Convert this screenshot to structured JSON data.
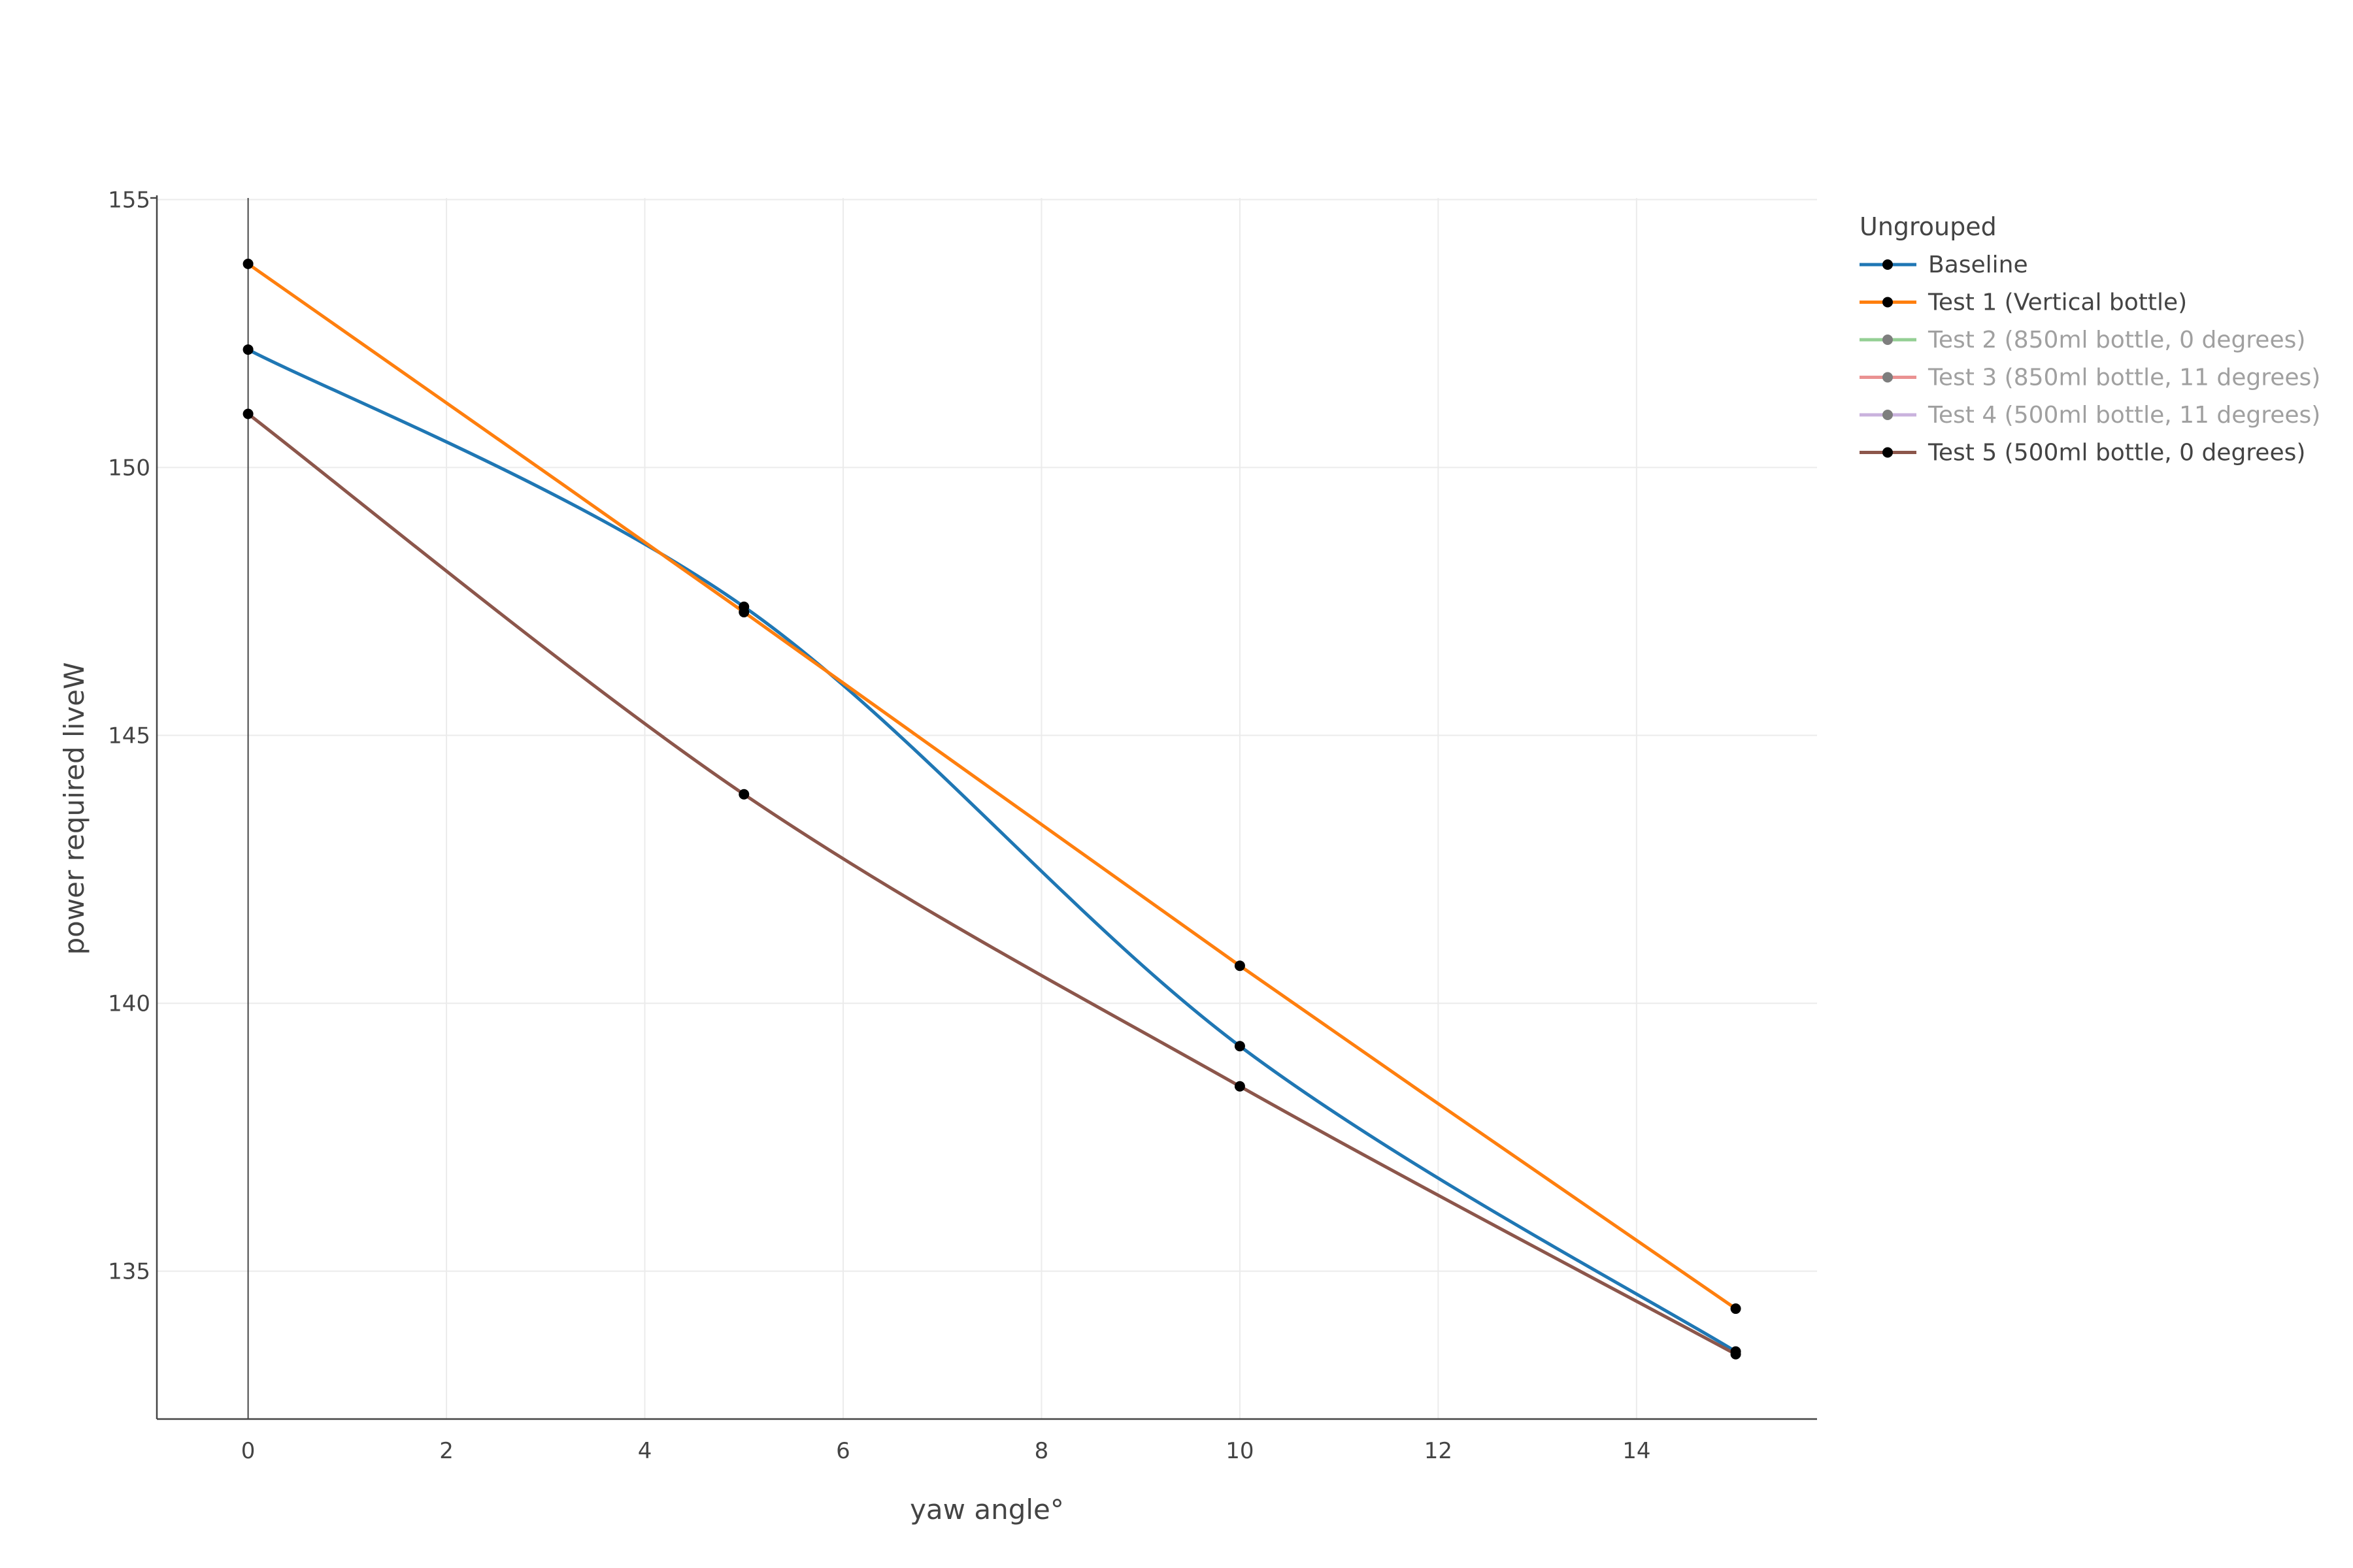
{
  "chart_data": {
    "type": "line",
    "title": "",
    "xlabel": "yaw angle°",
    "ylabel": "power required liveW",
    "xlim": [
      -0.92,
      15.82
    ],
    "ylim": [
      132.24,
      155.03
    ],
    "x_ticks": [
      0,
      2,
      4,
      6,
      8,
      10,
      12,
      14
    ],
    "y_ticks": [
      135,
      140,
      145,
      150,
      155
    ],
    "grid": true,
    "legend": {
      "title": "Ungrouped",
      "placement": "top-right, outside plot"
    },
    "series": [
      {
        "name": "Baseline",
        "color": "#1f77b4",
        "visible": true,
        "x": [
          0,
          5,
          10,
          15
        ],
        "y": [
          152.2,
          147.4,
          139.2,
          133.5
        ]
      },
      {
        "name": "Test 1 (Vertical bottle)",
        "color": "#ff7f0e",
        "visible": true,
        "x": [
          0,
          5,
          10,
          15
        ],
        "y": [
          153.8,
          147.3,
          140.7,
          134.3
        ]
      },
      {
        "name": "Test 2 (850ml bottle, 0 degrees)",
        "color": "#2ca02c",
        "visible": false,
        "x": [],
        "y": []
      },
      {
        "name": "Test 3 (850ml bottle, 11 degrees)",
        "color": "#d62728",
        "visible": false,
        "x": [],
        "y": []
      },
      {
        "name": "Test 4 (500ml bottle, 11 degrees)",
        "color": "#9467bd",
        "visible": false,
        "x": [],
        "y": []
      },
      {
        "name": "Test 5 (500ml bottle, 0 degrees)",
        "color": "#8c564b",
        "visible": true,
        "x": [
          0,
          5,
          10,
          15
        ],
        "y": [
          151.0,
          143.9,
          138.45,
          133.45
        ]
      }
    ]
  }
}
